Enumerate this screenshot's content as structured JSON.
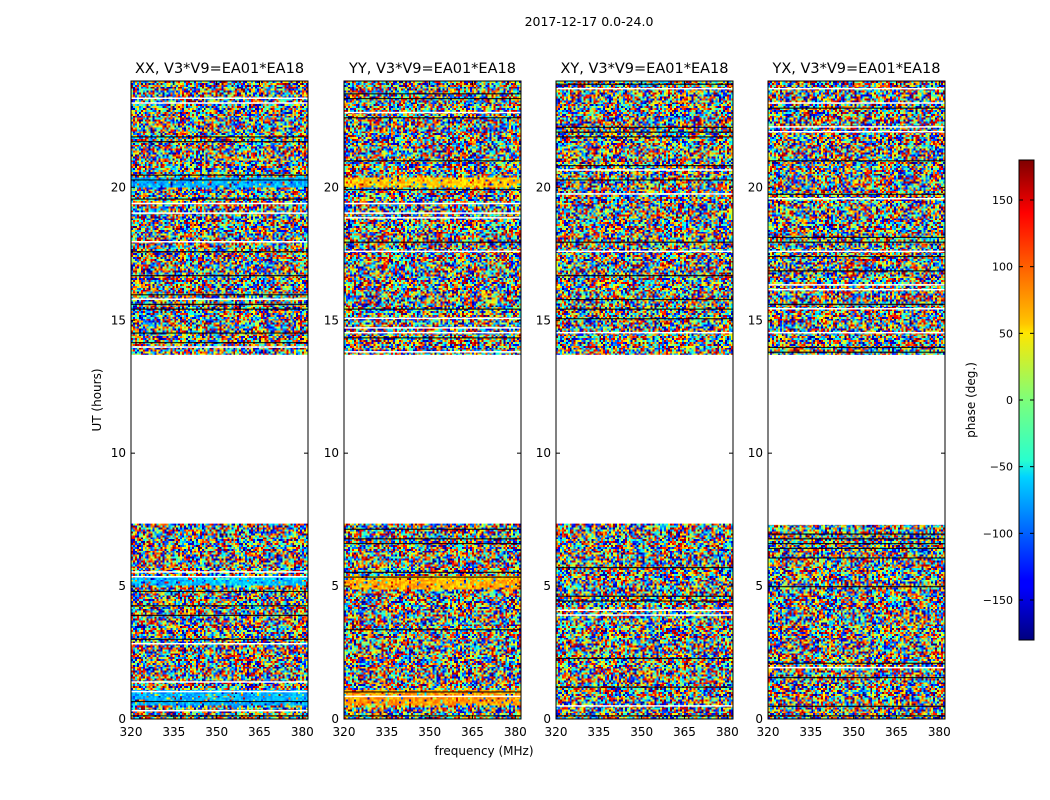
{
  "chart_data": {
    "type": "heatmap",
    "suptitle": "2017-12-17 0.0-24.0",
    "xlabel": "frequency (MHz)",
    "ylabel": "UT (hours)",
    "xlim": [
      320,
      382
    ],
    "ylim": [
      0,
      24
    ],
    "xticks": [
      320,
      335,
      350,
      365,
      380
    ],
    "yticks": [
      0,
      5,
      10,
      15,
      20
    ],
    "data_gap_hours": [
      13.7,
      7.35
    ],
    "colorbar": {
      "label": "phase (deg.)",
      "range": [
        -180,
        180
      ],
      "ticks": [
        150,
        100,
        50,
        0,
        -50,
        -100,
        -150
      ],
      "tick_labels": [
        "150",
        "100",
        "50",
        "0",
        "−50",
        "−100",
        "−150"
      ],
      "colormap": "jet"
    },
    "panels": [
      {
        "title": "XX, V3*V9=EA01*EA18"
      },
      {
        "title": "YY, V3*V9=EA01*EA18"
      },
      {
        "title": "XY, V3*V9=EA01*EA18"
      },
      {
        "title": "YX, V3*V9=EA01*EA18"
      }
    ]
  }
}
